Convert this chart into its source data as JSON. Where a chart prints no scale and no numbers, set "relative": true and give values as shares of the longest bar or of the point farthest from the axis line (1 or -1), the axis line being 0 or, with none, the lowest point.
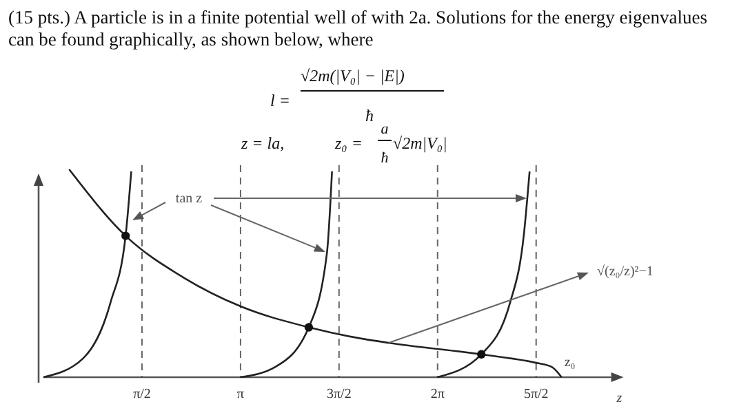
{
  "chart_data": {
    "type": "line",
    "relative": true,
    "title": "(15 pts.)  A particle is in a finite potential well of with 2a.  Solutions for the energy eigenvalues can be found graphically, as shown below, where",
    "xlabel": "z",
    "xlim": [
      0,
      9.05
    ],
    "xticks": [
      {
        "value": 1.571,
        "label": "π/2"
      },
      {
        "value": 3.142,
        "label": "π"
      },
      {
        "value": 4.712,
        "label": "3π/2"
      },
      {
        "value": 6.283,
        "label": "2π"
      },
      {
        "value": 7.854,
        "label": "5π/2"
      }
    ],
    "ref_lines": [
      {
        "axis": "x",
        "value": 1.571,
        "line_style": "dashed"
      },
      {
        "axis": "x",
        "value": 3.142,
        "line_style": "dashed"
      },
      {
        "axis": "x",
        "value": 4.712,
        "line_style": "dashed"
      },
      {
        "axis": "x",
        "value": 6.283,
        "line_style": "dashed"
      },
      {
        "axis": "x",
        "value": 7.854,
        "line_style": "dashed"
      }
    ],
    "series": [
      {
        "name": "tan z",
        "color": "#222222",
        "x": [
          0,
          0.63,
          1.07,
          1.31,
          1.4
        ],
        "values": [
          0,
          0.09,
          0.36,
          0.68,
          0.99
        ]
      },
      {
        "color": "#222222",
        "x": [
          3.14,
          3.7,
          4.23,
          4.52,
          4.6
        ],
        "values": [
          0,
          0.05,
          0.24,
          0.6,
          0.99
        ]
      },
      {
        "color": "#222222",
        "x": [
          6.28,
          6.98,
          7.44,
          7.66,
          7.75
        ],
        "values": [
          0,
          0.11,
          0.36,
          0.69,
          0.99
        ]
      },
      {
        "name": "√(z₀/z)²−1",
        "color": "#222222",
        "x": [
          0.41,
          1.31,
          2.23,
          3.15,
          4.23,
          5.18,
          5.51,
          6.98,
          7.84,
          8.1,
          8.26
        ],
        "values": [
          1,
          0.68,
          0.48,
          0.34,
          0.24,
          0.18,
          0.165,
          0.11,
          0.07,
          0.05,
          0
        ]
      },
      {
        "type": "scatter",
        "marker": "circle",
        "color": "#111111",
        "x": [
          1.31,
          4.23,
          6.98
        ],
        "values": [
          0.68,
          0.24,
          0.11
        ]
      }
    ],
    "annotations": [
      "l =",
      "√2m(|V₀| − |E|)",
      "ħ",
      "z = la,",
      "z₀ =",
      "a",
      "ħ",
      "√2m|V₀|",
      {
        "text": "z₀",
        "x": 8.26,
        "y": 0
      }
    ]
  }
}
